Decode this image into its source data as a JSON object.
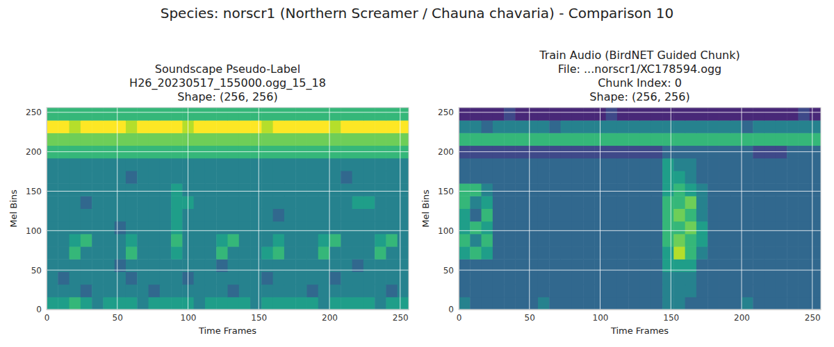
{
  "suptitle": "Species: norscr1 (Northern Screamer / Chauna chavaria) - Comparison 10",
  "chart_data": [
    {
      "type": "heatmap",
      "title": [
        "Soundscape Pseudo-Label",
        "H26_20230517_155000.ogg_15_18",
        "Shape: (256, 256)"
      ],
      "x_label": "Time Frames",
      "y_label": "Mel Bins",
      "xlim": [
        0,
        256
      ],
      "ylim": [
        0,
        256
      ],
      "xticks": [
        0,
        50,
        100,
        150,
        200,
        250
      ],
      "yticks": [
        0,
        50,
        100,
        150,
        200,
        250
      ],
      "grid": true,
      "color": "viridis",
      "zlim": [
        0,
        9
      ],
      "x_edges": [
        0,
        8,
        16,
        24,
        32,
        40,
        48,
        56,
        64,
        72,
        80,
        88,
        96,
        104,
        112,
        120,
        128,
        136,
        144,
        152,
        160,
        168,
        176,
        184,
        192,
        200,
        208,
        216,
        224,
        232,
        240,
        248,
        256
      ],
      "y_edges": [
        0,
        16,
        32,
        48,
        64,
        80,
        96,
        112,
        128,
        144,
        160,
        176,
        192,
        208,
        224,
        240,
        256
      ],
      "cells": [
        [
          5,
          5,
          6,
          5,
          4,
          5,
          5,
          5,
          4,
          5,
          5,
          5,
          5,
          4,
          5,
          5,
          5,
          5,
          4,
          5,
          5,
          5,
          5,
          5,
          4,
          5,
          5,
          5,
          5,
          4,
          5,
          5
        ],
        [
          4,
          4,
          4,
          3,
          4,
          4,
          4,
          4,
          4,
          3,
          4,
          4,
          4,
          4,
          4,
          4,
          3,
          4,
          4,
          4,
          4,
          4,
          4,
          3,
          4,
          4,
          4,
          4,
          4,
          4,
          3,
          4
        ],
        [
          4,
          3,
          4,
          4,
          4,
          4,
          4,
          3,
          4,
          4,
          4,
          4,
          3,
          4,
          4,
          4,
          4,
          4,
          4,
          3,
          4,
          4,
          4,
          4,
          4,
          3,
          4,
          4,
          4,
          4,
          4,
          4
        ],
        [
          4,
          4,
          4,
          4,
          4,
          4,
          3,
          4,
          4,
          4,
          4,
          4,
          4,
          4,
          4,
          3,
          4,
          4,
          4,
          4,
          4,
          4,
          4,
          4,
          4,
          4,
          4,
          3,
          4,
          4,
          4,
          4
        ],
        [
          4,
          4,
          6,
          4,
          4,
          4,
          4,
          6,
          4,
          4,
          4,
          5,
          4,
          4,
          4,
          6,
          4,
          4,
          4,
          5,
          6,
          4,
          4,
          4,
          6,
          4,
          4,
          4,
          4,
          6,
          4,
          4
        ],
        [
          4,
          4,
          5,
          6,
          4,
          4,
          4,
          5,
          4,
          4,
          4,
          6,
          4,
          4,
          4,
          5,
          6,
          4,
          4,
          4,
          5,
          4,
          4,
          4,
          5,
          6,
          4,
          4,
          4,
          5,
          6,
          4
        ],
        [
          4,
          4,
          4,
          4,
          4,
          4,
          3,
          4,
          4,
          4,
          4,
          5,
          4,
          4,
          4,
          4,
          4,
          4,
          4,
          4,
          4,
          4,
          4,
          4,
          4,
          4,
          4,
          4,
          4,
          4,
          4,
          4
        ],
        [
          4,
          4,
          4,
          4,
          4,
          4,
          4,
          4,
          4,
          4,
          4,
          5,
          4,
          4,
          4,
          4,
          4,
          4,
          4,
          4,
          3,
          4,
          4,
          4,
          4,
          4,
          4,
          4,
          4,
          4,
          4,
          4
        ],
        [
          4,
          4,
          4,
          3,
          4,
          4,
          4,
          4,
          4,
          4,
          4,
          5,
          5,
          4,
          4,
          4,
          4,
          4,
          4,
          4,
          4,
          4,
          4,
          4,
          4,
          4,
          4,
          5,
          5,
          4,
          4,
          4
        ],
        [
          4,
          4,
          4,
          4,
          4,
          4,
          4,
          4,
          4,
          4,
          4,
          5,
          4,
          4,
          4,
          4,
          4,
          4,
          4,
          4,
          4,
          4,
          4,
          4,
          4,
          4,
          4,
          4,
          4,
          4,
          4,
          4
        ],
        [
          4,
          4,
          4,
          4,
          4,
          4,
          4,
          3,
          4,
          4,
          4,
          4,
          4,
          4,
          4,
          4,
          4,
          4,
          4,
          4,
          4,
          4,
          4,
          4,
          4,
          4,
          3,
          4,
          4,
          4,
          4,
          4
        ],
        [
          4,
          4,
          4,
          4,
          4,
          4,
          4,
          4,
          4,
          4,
          4,
          4,
          4,
          4,
          4,
          4,
          4,
          4,
          4,
          4,
          4,
          4,
          4,
          4,
          4,
          4,
          4,
          4,
          4,
          4,
          4,
          4
        ],
        [
          6,
          6,
          6,
          6,
          6,
          6,
          6,
          6,
          6,
          6,
          6,
          6,
          6,
          6,
          6,
          6,
          6,
          6,
          6,
          6,
          6,
          6,
          6,
          6,
          6,
          6,
          6,
          6,
          6,
          6,
          6,
          6
        ],
        [
          7,
          7,
          7,
          7,
          7,
          7,
          7,
          7,
          7,
          7,
          7,
          7,
          7,
          7,
          7,
          7,
          7,
          7,
          7,
          7,
          7,
          7,
          7,
          7,
          7,
          7,
          7,
          7,
          7,
          7,
          7,
          7
        ],
        [
          9,
          9,
          8,
          9,
          9,
          9,
          9,
          8,
          9,
          9,
          9,
          9,
          8,
          9,
          9,
          9,
          9,
          9,
          9,
          8,
          9,
          9,
          9,
          9,
          9,
          8,
          9,
          9,
          9,
          9,
          9,
          9
        ],
        [
          6,
          6,
          6,
          6,
          6,
          6,
          6,
          6,
          6,
          6,
          6,
          6,
          6,
          6,
          6,
          6,
          6,
          6,
          6,
          6,
          6,
          6,
          6,
          6,
          6,
          6,
          6,
          6,
          6,
          6,
          6,
          6
        ]
      ]
    },
    {
      "type": "heatmap",
      "title": [
        "Train Audio (BirdNET Guided Chunk)",
        "File: ...norscr1/XC178594.ogg",
        "Chunk Index: 0",
        "Shape: (256, 256)"
      ],
      "x_label": "Time Frames",
      "y_label": "Mel Bins",
      "xlim": [
        0,
        256
      ],
      "ylim": [
        0,
        256
      ],
      "xticks": [
        0,
        50,
        100,
        150,
        200,
        250
      ],
      "yticks": [
        0,
        50,
        100,
        150,
        200,
        250
      ],
      "grid": true,
      "color": "viridis",
      "zlim": [
        0,
        9
      ],
      "x_edges": [
        0,
        8,
        16,
        24,
        32,
        40,
        48,
        56,
        64,
        72,
        80,
        88,
        96,
        104,
        112,
        120,
        128,
        136,
        144,
        152,
        160,
        168,
        176,
        184,
        192,
        200,
        208,
        216,
        224,
        232,
        240,
        248,
        256
      ],
      "y_edges": [
        0,
        16,
        32,
        48,
        64,
        80,
        96,
        112,
        128,
        144,
        160,
        176,
        192,
        208,
        224,
        240,
        256
      ],
      "cells": [
        [
          4,
          3,
          3,
          3,
          3,
          3,
          3,
          4,
          3,
          3,
          3,
          3,
          3,
          3,
          3,
          3,
          3,
          3,
          4,
          4,
          3,
          3,
          3,
          3,
          3,
          4,
          3,
          3,
          3,
          3,
          3,
          3
        ],
        [
          3,
          3,
          3,
          3,
          3,
          3,
          3,
          3,
          3,
          3,
          3,
          3,
          3,
          3,
          3,
          3,
          3,
          3,
          4,
          4,
          4,
          3,
          3,
          3,
          3,
          3,
          3,
          3,
          3,
          3,
          3,
          3
        ],
        [
          3,
          3,
          3,
          3,
          3,
          3,
          3,
          3,
          3,
          3,
          3,
          3,
          3,
          3,
          3,
          3,
          3,
          3,
          4,
          4,
          4,
          3,
          3,
          3,
          3,
          3,
          3,
          3,
          3,
          3,
          3,
          3
        ],
        [
          3,
          3,
          3,
          3,
          3,
          3,
          3,
          3,
          3,
          3,
          3,
          3,
          3,
          3,
          3,
          3,
          3,
          3,
          5,
          5,
          5,
          3,
          3,
          3,
          3,
          3,
          3,
          3,
          3,
          3,
          3,
          3
        ],
        [
          5,
          6,
          5,
          3,
          3,
          3,
          3,
          3,
          3,
          3,
          3,
          3,
          3,
          3,
          3,
          3,
          3,
          3,
          5,
          8,
          6,
          4,
          3,
          3,
          3,
          3,
          3,
          3,
          3,
          3,
          3,
          3
        ],
        [
          6,
          4,
          6,
          3,
          3,
          3,
          3,
          3,
          3,
          3,
          3,
          3,
          3,
          3,
          3,
          3,
          3,
          3,
          6,
          7,
          6,
          5,
          3,
          3,
          3,
          3,
          3,
          3,
          3,
          3,
          3,
          3
        ],
        [
          5,
          6,
          5,
          3,
          3,
          3,
          3,
          3,
          3,
          3,
          3,
          3,
          3,
          3,
          3,
          3,
          3,
          3,
          6,
          6,
          7,
          5,
          3,
          3,
          3,
          3,
          3,
          3,
          3,
          3,
          3,
          3
        ],
        [
          5,
          3,
          6,
          3,
          3,
          3,
          3,
          3,
          3,
          3,
          3,
          3,
          3,
          3,
          3,
          3,
          3,
          3,
          6,
          7,
          6,
          4,
          3,
          3,
          3,
          3,
          3,
          3,
          3,
          3,
          3,
          3
        ],
        [
          6,
          4,
          5,
          3,
          3,
          3,
          3,
          3,
          3,
          3,
          3,
          3,
          3,
          3,
          3,
          3,
          3,
          3,
          6,
          6,
          7,
          4,
          3,
          3,
          3,
          3,
          3,
          3,
          3,
          3,
          3,
          3
        ],
        [
          6,
          6,
          4,
          3,
          3,
          3,
          3,
          3,
          3,
          3,
          3,
          3,
          3,
          3,
          3,
          3,
          3,
          3,
          5,
          6,
          5,
          4,
          3,
          3,
          3,
          3,
          3,
          3,
          3,
          3,
          3,
          3
        ],
        [
          3,
          3,
          3,
          3,
          3,
          3,
          3,
          3,
          3,
          3,
          3,
          3,
          3,
          3,
          3,
          3,
          3,
          3,
          5,
          5,
          4,
          3,
          3,
          3,
          3,
          3,
          3,
          3,
          3,
          3,
          3,
          3
        ],
        [
          3,
          3,
          3,
          3,
          3,
          3,
          3,
          3,
          3,
          3,
          3,
          3,
          3,
          3,
          3,
          3,
          3,
          3,
          5,
          4,
          4,
          3,
          3,
          3,
          3,
          3,
          3,
          3,
          3,
          3,
          3,
          3
        ],
        [
          2,
          2,
          2,
          2,
          2,
          2,
          2,
          2,
          2,
          2,
          2,
          2,
          2,
          2,
          2,
          2,
          2,
          2,
          3,
          3,
          3,
          3,
          3,
          3,
          3,
          3,
          2,
          2,
          2,
          3,
          3,
          3
        ],
        [
          6,
          6,
          6,
          6,
          6,
          6,
          6,
          6,
          6,
          6,
          6,
          6,
          6,
          6,
          6,
          6,
          6,
          6,
          6,
          6,
          6,
          6,
          6,
          6,
          6,
          6,
          6,
          6,
          6,
          6,
          6,
          6
        ],
        [
          4,
          4,
          3,
          4,
          4,
          4,
          4,
          4,
          3,
          4,
          4,
          4,
          4,
          4,
          4,
          4,
          4,
          4,
          4,
          4,
          4,
          4,
          4,
          4,
          4,
          3,
          4,
          4,
          4,
          4,
          4,
          4
        ],
        [
          1,
          1,
          1,
          1,
          2,
          1,
          1,
          1,
          1,
          1,
          1,
          1,
          1,
          2,
          1,
          1,
          1,
          1,
          1,
          1,
          1,
          1,
          1,
          1,
          1,
          1,
          1,
          1,
          1,
          1,
          2,
          1
        ]
      ]
    }
  ]
}
